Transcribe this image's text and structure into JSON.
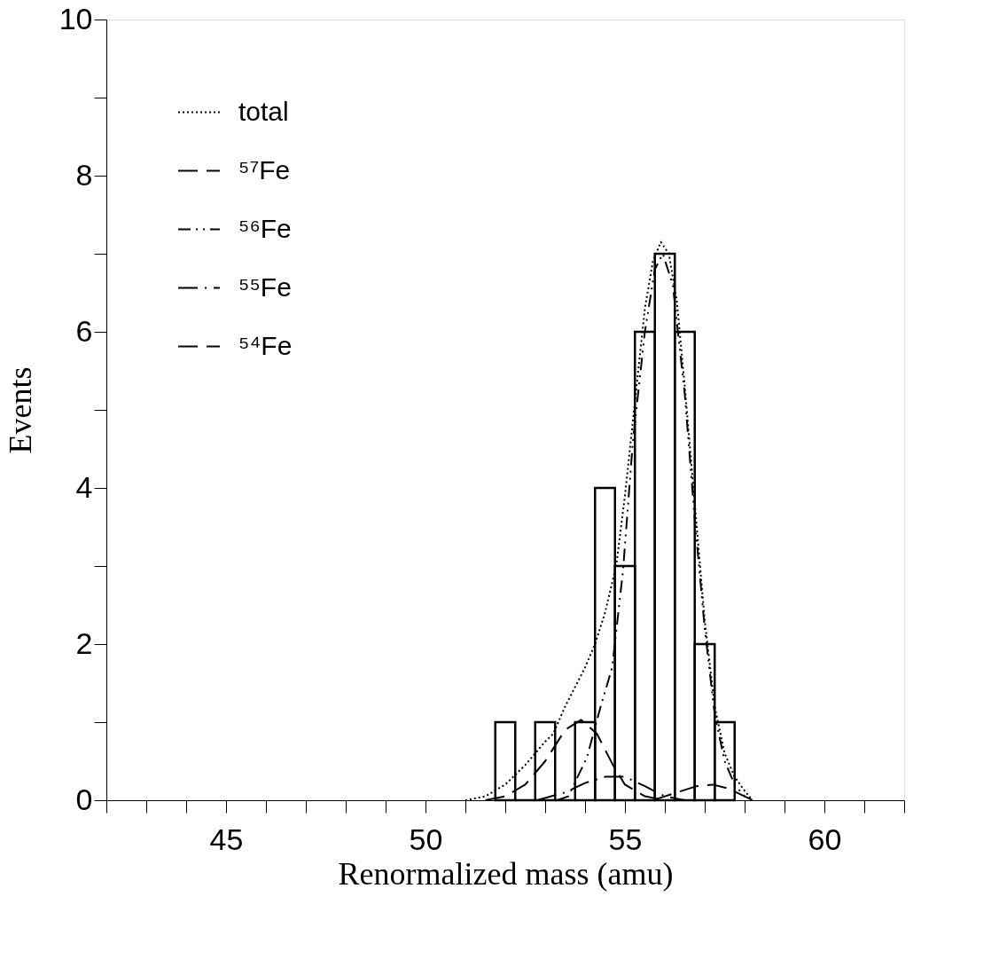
{
  "chart_data": {
    "type": "histogram",
    "xlabel": "Renormalized mass (amu)",
    "ylabel": "Events",
    "bins": [
      51.75,
      52.25,
      52.75,
      53.25,
      53.75,
      54.25,
      54.75,
      55.25,
      55.75,
      56.25,
      56.75,
      57.25,
      57.75
    ],
    "values": [
      1,
      0,
      1,
      0,
      1,
      4,
      3,
      6,
      7,
      6,
      2,
      1
    ],
    "color": "#000000",
    "series": [
      {
        "name": "total",
        "type": "line",
        "color": "#000000",
        "line_style": "dotted",
        "x": [
          51.0,
          51.5,
          52.0,
          52.5,
          53.0,
          53.2,
          53.5,
          54.0,
          54.25,
          54.5,
          54.78,
          55.0,
          55.27,
          55.5,
          55.7,
          55.9,
          56.1,
          56.3,
          56.5,
          56.75,
          57.0,
          57.25,
          57.5,
          57.75,
          58.0,
          58.2
        ],
        "values": [
          0,
          0.05,
          0.2,
          0.45,
          0.75,
          0.85,
          1.2,
          1.7,
          2.0,
          2.4,
          3.0,
          3.9,
          5.2,
          6.3,
          6.9,
          7.15,
          7.0,
          6.4,
          5.3,
          3.8,
          2.3,
          1.2,
          0.6,
          0.3,
          0.12,
          0
        ]
      },
      {
        "name": "⁵⁷Fe",
        "type": "line",
        "color": "#000000",
        "line_style": "dashed",
        "x": [
          55.7,
          56.0,
          56.3,
          56.8,
          57.2,
          57.6,
          58.0,
          58.2
        ],
        "values": [
          0,
          0.05,
          0.1,
          0.18,
          0.2,
          0.15,
          0.05,
          0
        ]
      },
      {
        "name": "⁵⁶Fe",
        "type": "line",
        "color": "#000000",
        "line_style": "dashdotdot",
        "x": [
          53.3,
          53.58,
          54.05,
          54.38,
          54.68,
          54.95,
          55.2,
          55.5,
          55.75,
          55.95,
          56.2,
          56.5,
          56.75,
          57.0,
          57.25,
          57.5,
          57.75,
          58.0
        ],
        "values": [
          0,
          0.05,
          0.55,
          1.18,
          1.7,
          2.93,
          4.6,
          6.0,
          6.8,
          7.0,
          6.6,
          5.2,
          3.6,
          2.2,
          1.1,
          0.5,
          0.2,
          0.05
        ]
      },
      {
        "name": "⁵⁵Fe",
        "type": "line",
        "color": "#000000",
        "line_style": "dashdot",
        "x": [
          52.8,
          53.5,
          54.0,
          54.5,
          55.0,
          55.5,
          56.0,
          56.5
        ],
        "values": [
          0,
          0.1,
          0.22,
          0.3,
          0.3,
          0.18,
          0.05,
          0
        ]
      },
      {
        "name": "⁵⁴Fe",
        "type": "line",
        "color": "#000000",
        "line_style": "dashed",
        "x": [
          51.5,
          52.0,
          52.5,
          53.0,
          53.5,
          53.9,
          54.3,
          54.7,
          55.0,
          55.5,
          56.0
        ],
        "values": [
          0,
          0.05,
          0.2,
          0.5,
          0.9,
          1.03,
          0.85,
          0.45,
          0.2,
          0.05,
          0
        ]
      }
    ],
    "xlim": [
      42,
      62
    ],
    "xticks": [
      {
        "value": 42,
        "label": null
      },
      {
        "value": 43,
        "label": null
      },
      {
        "value": 44,
        "label": null
      },
      45,
      {
        "value": 46,
        "label": null
      },
      {
        "value": 47,
        "label": null
      },
      {
        "value": 48,
        "label": null
      },
      {
        "value": 49,
        "label": null
      },
      50,
      {
        "value": 51,
        "label": null
      },
      {
        "value": 52,
        "label": null
      },
      {
        "value": 53,
        "label": null
      },
      {
        "value": 54,
        "label": null
      },
      55,
      {
        "value": 56,
        "label": null
      },
      {
        "value": 57,
        "label": null
      },
      {
        "value": 58,
        "label": null
      },
      {
        "value": 59,
        "label": null
      },
      60,
      {
        "value": 61,
        "label": null
      },
      {
        "value": 62,
        "label": null
      }
    ],
    "ylim": [
      0,
      10
    ],
    "yticks": [
      0,
      {
        "value": 1,
        "label": null
      },
      2,
      {
        "value": 3,
        "label": null
      },
      4,
      {
        "value": 5,
        "label": null
      },
      6,
      {
        "value": 7,
        "label": null
      },
      8,
      {
        "value": 9,
        "label": null
      },
      10
    ],
    "grid": false,
    "legend": "top left"
  }
}
